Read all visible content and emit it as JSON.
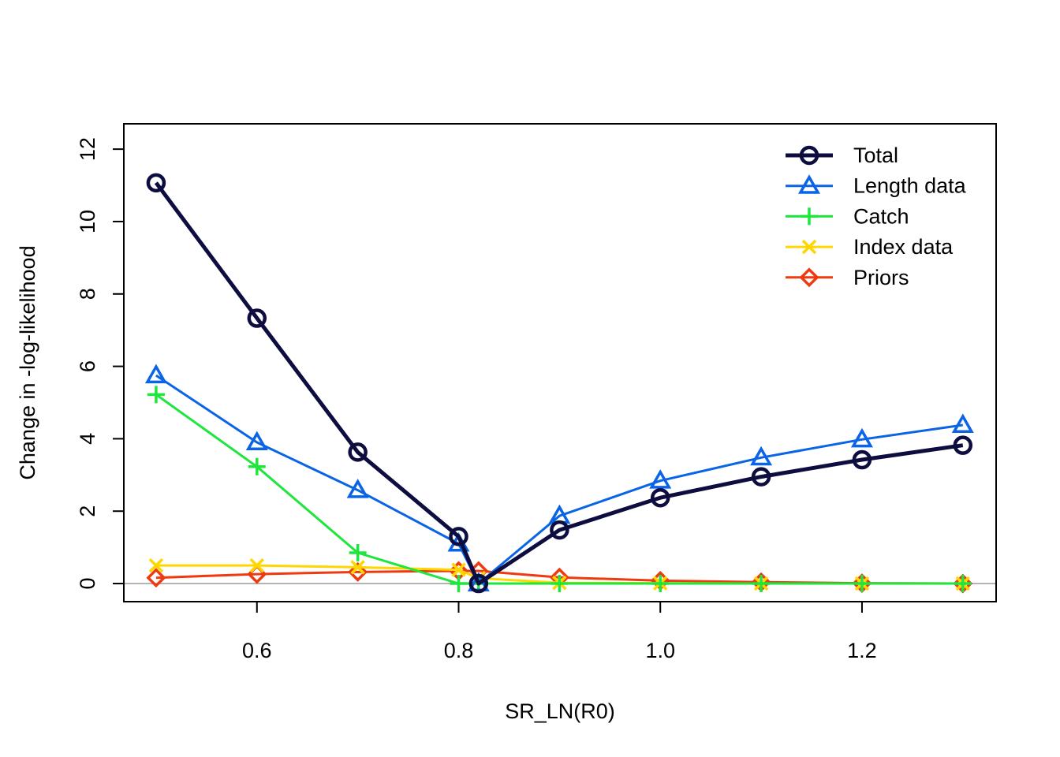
{
  "chart_data": {
    "type": "line",
    "title": "",
    "xlabel": "SR_LN(R0)",
    "ylabel": "Change in -log-likelihood",
    "xlim": [
      0.468,
      1.333
    ],
    "ylim": [
      -0.5,
      12.7
    ],
    "xticks": [
      0.6,
      0.8,
      1.0,
      1.2
    ],
    "xtick_labels": [
      "0.6",
      "0.8",
      "1.0",
      "1.2"
    ],
    "yticks": [
      0,
      2,
      4,
      6,
      8,
      10,
      12
    ],
    "ytick_labels": [
      "0",
      "2",
      "4",
      "6",
      "8",
      "10",
      "12"
    ],
    "grid": false,
    "reference_line_y": 0,
    "legend_position": "top-right",
    "x": [
      0.5,
      0.6,
      0.7,
      0.8,
      0.8198,
      0.9,
      1.0,
      1.1,
      1.2,
      1.3
    ],
    "series": [
      {
        "name": "Total",
        "color": "#0d0d40",
        "marker": "circle",
        "values": [
          11.07,
          7.33,
          3.63,
          1.3,
          0.0,
          1.48,
          2.37,
          2.95,
          3.42,
          3.82
        ]
      },
      {
        "name": "Length data",
        "color": "#0a64e6",
        "marker": "triangle",
        "values": [
          5.75,
          3.9,
          2.58,
          1.1,
          0.0,
          1.87,
          2.84,
          3.48,
          3.98,
          4.38
        ]
      },
      {
        "name": "Catch",
        "color": "#1ee63c",
        "marker": "plus",
        "values": [
          5.22,
          3.23,
          0.85,
          0.0,
          0.0,
          0.0,
          0.0,
          0.0,
          0.0,
          0.0
        ]
      },
      {
        "name": "Index data",
        "color": "#ffd700",
        "marker": "x",
        "values": [
          0.5,
          0.5,
          0.45,
          0.38,
          0.15,
          0.02,
          0.01,
          0.0,
          0.0,
          0.0
        ]
      },
      {
        "name": "Priors",
        "color": "#ee3a10",
        "marker": "diamond",
        "values": [
          0.16,
          0.26,
          0.32,
          0.35,
          0.35,
          0.17,
          0.08,
          0.04,
          0.01,
          0.0
        ]
      }
    ]
  }
}
